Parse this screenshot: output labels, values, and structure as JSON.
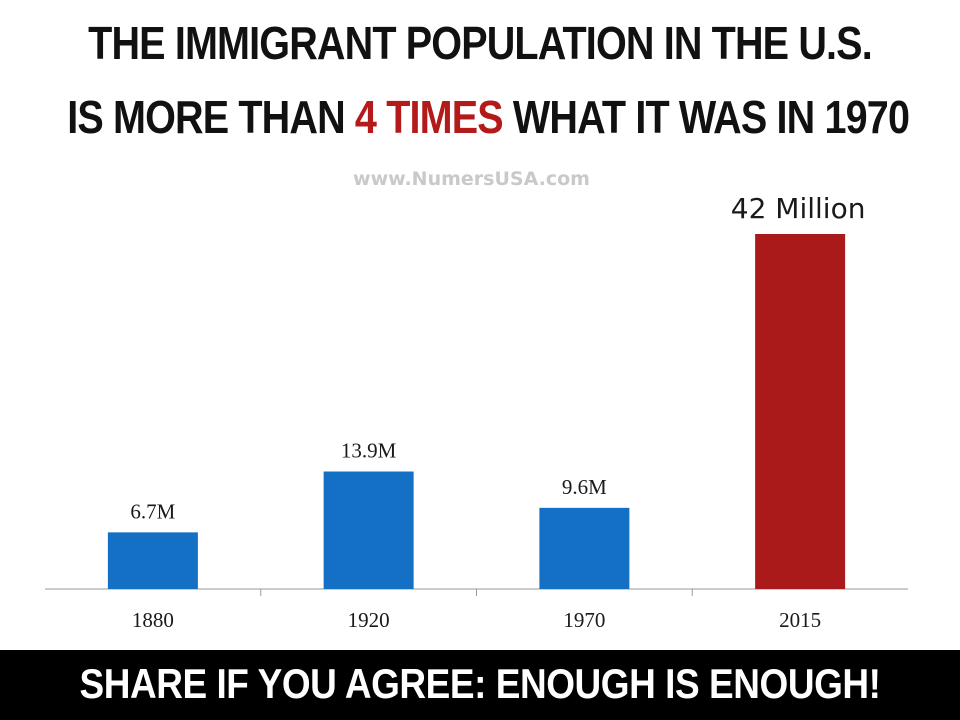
{
  "headline": {
    "line1": "THE IMMIGRANT POPULATION IN THE U.S.",
    "line2_pre": "IS MORE THAN ",
    "line2_accent": "4 TIMES",
    "line2_post": " WHAT IT WAS IN 1970"
  },
  "watermark": "www.NumersUSA.com",
  "footer": "SHARE IF YOU AGREE: ENOUGH IS ENOUGH!",
  "colors": {
    "bar_default": "#1470c4",
    "bar_highlight": "#aa1a1a",
    "headline_accent": "#b31b1b"
  },
  "chart_data": {
    "type": "bar",
    "categories": [
      "1880",
      "1920",
      "1970",
      "2015"
    ],
    "values": [
      6.7,
      13.9,
      9.6,
      42
    ],
    "data_labels": [
      "6.7M",
      "13.9M",
      "9.6M",
      "42 Million"
    ],
    "highlight_index": 3,
    "title": "",
    "xlabel": "",
    "ylabel": "",
    "ylim": [
      0,
      46
    ],
    "grid": false,
    "legend": "none"
  }
}
